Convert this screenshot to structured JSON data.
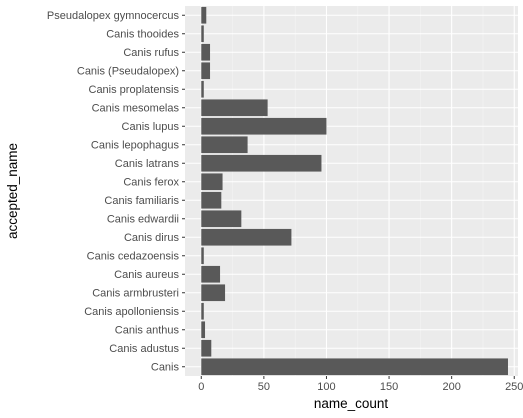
{
  "chart_data": {
    "type": "bar",
    "orientation": "horizontal",
    "xlabel": "name_count",
    "ylabel": "accepted_name",
    "xlim": [
      -13,
      253
    ],
    "xticks": [
      0,
      50,
      100,
      150,
      200,
      250
    ],
    "grid": true,
    "categories": [
      "Pseudalopex gymnocercus",
      "Canis thooides",
      "Canis rufus",
      "Canis (Pseudalopex)",
      "Canis proplatensis",
      "Canis mesomelas",
      "Canis lupus",
      "Canis lepophagus",
      "Canis latrans",
      "Canis ferox",
      "Canis familiaris",
      "Canis edwardii",
      "Canis dirus",
      "Canis cedazoensis",
      "Canis aureus",
      "Canis armbrusteri",
      "Canis apolloniensis",
      "Canis anthus",
      "Canis adustus",
      "Canis"
    ],
    "values": [
      4,
      2,
      7,
      7,
      2,
      53,
      100,
      37,
      96,
      17,
      16,
      32,
      72,
      2,
      15,
      19,
      2,
      3,
      8,
      245
    ],
    "colors": {
      "bar": "#595959",
      "panel": "#ebebeb",
      "grid_major": "#ffffff",
      "grid_minor": "#f5f5f5"
    }
  }
}
